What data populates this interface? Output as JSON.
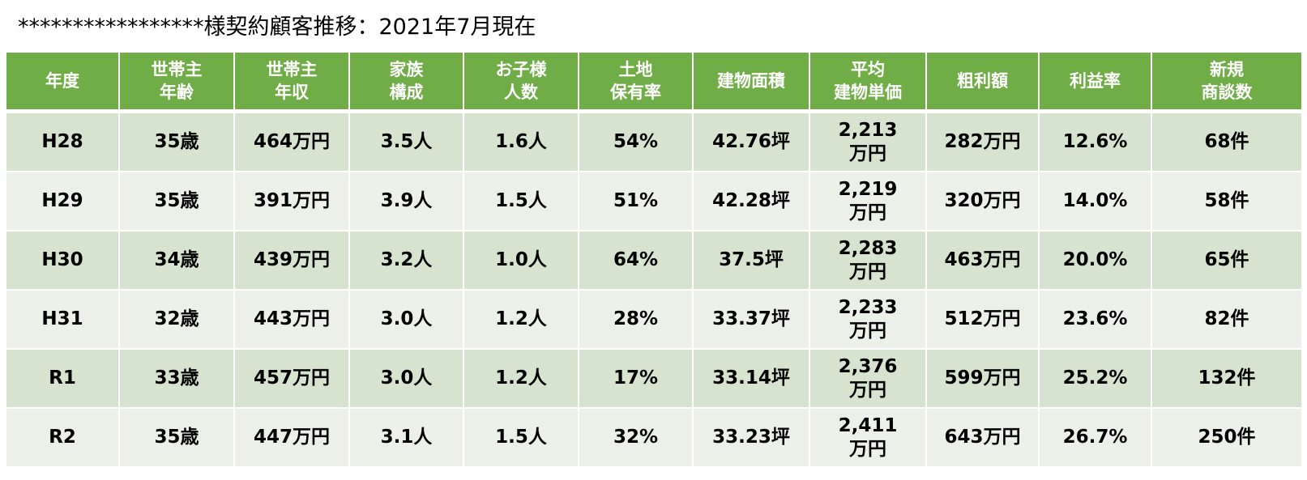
{
  "title": "*****************様契約顧客推移：2021年7月現在",
  "table": {
    "headers": [
      [
        "年度"
      ],
      [
        "世帯主",
        "年齢"
      ],
      [
        "世帯主",
        "年収"
      ],
      [
        "家族",
        "構成"
      ],
      [
        "お子様",
        "人数"
      ],
      [
        "土地",
        "保有率"
      ],
      [
        "建物面積"
      ],
      [
        "平均",
        "建物単価"
      ],
      [
        "粗利額"
      ],
      [
        "利益率"
      ],
      [
        "新規",
        "商談数"
      ]
    ],
    "rows": [
      {
        "year": "H28",
        "age": "35歳",
        "income": "464万円",
        "family": "3.5人",
        "children": "1.6人",
        "land": "54%",
        "area": "42.76坪",
        "unit_price": [
          "2,213",
          "万円"
        ],
        "gross_profit": "282万円",
        "margin": "12.6%",
        "negotiations": "68件"
      },
      {
        "year": "H29",
        "age": "35歳",
        "income": "391万円",
        "family": "3.9人",
        "children": "1.5人",
        "land": "51%",
        "area": "42.28坪",
        "unit_price": [
          "2,219",
          "万円"
        ],
        "gross_profit": "320万円",
        "margin": "14.0%",
        "negotiations": "58件"
      },
      {
        "year": "H30",
        "age": "34歳",
        "income": "439万円",
        "family": "3.2人",
        "children": "1.0人",
        "land": "64%",
        "area": "37.5坪",
        "unit_price": [
          "2,283",
          "万円"
        ],
        "gross_profit": "463万円",
        "margin": "20.0%",
        "negotiations": "65件"
      },
      {
        "year": "H31",
        "age": "32歳",
        "income": "443万円",
        "family": "3.0人",
        "children": "1.2人",
        "land": "28%",
        "area": "33.37坪",
        "unit_price": [
          "2,233",
          "万円"
        ],
        "gross_profit": "512万円",
        "margin": "23.6%",
        "negotiations": "82件"
      },
      {
        "year": "R1",
        "age": "33歳",
        "income": "457万円",
        "family": "3.0人",
        "children": "1.2人",
        "land": "17%",
        "area": "33.14坪",
        "unit_price": [
          "2,376",
          "万円"
        ],
        "gross_profit": "599万円",
        "margin": "25.2%",
        "negotiations": "132件"
      },
      {
        "year": "R2",
        "age": "35歳",
        "income": "447万円",
        "family": "3.1人",
        "children": "1.5人",
        "land": "32%",
        "area": "33.23坪",
        "unit_price": [
          "2,411",
          "万円"
        ],
        "gross_profit": "643万円",
        "margin": "26.7%",
        "negotiations": "250件"
      }
    ]
  },
  "colors": {
    "header_bg": "#70ad47",
    "row_odd_bg": "#d5e3cf",
    "row_even_bg": "#ebf1e9"
  }
}
